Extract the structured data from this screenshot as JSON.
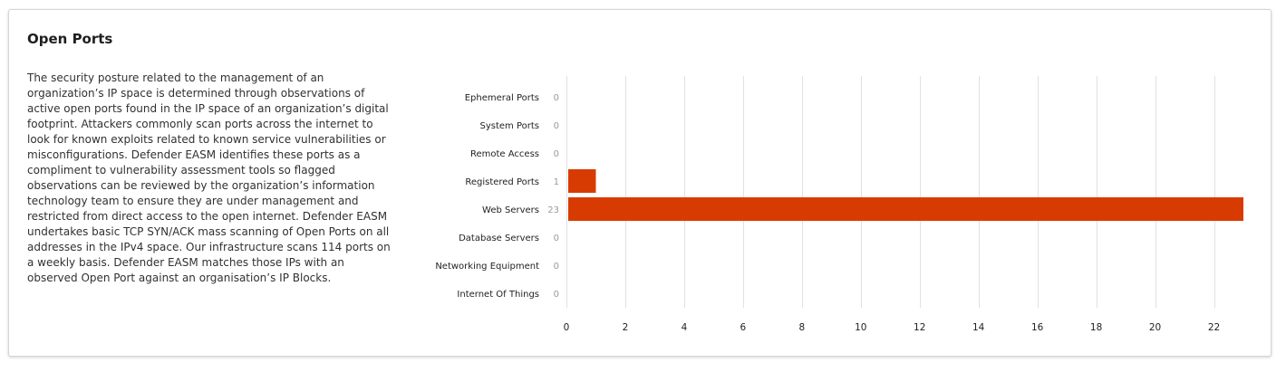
{
  "card": {
    "title": "Open Ports",
    "description": "The security posture related to the management of an organization’s IP space is determined through observations of active open ports found in the IP space of an organization’s digital footprint. Attackers commonly scan ports across the internet to look for known exploits related to known service vulnerabilities or misconfigurations. Defender EASM identifies these ports as a compliment to vulnerability assessment tools so flagged observations can be reviewed by the organization’s information technology team to ensure they are under management and restricted from direct access to the open internet. Defender EASM undertakes basic TCP SYN/ACK mass scanning of Open Ports on all addresses in the IPv4 space. Our infrastructure scans 114 ports on a weekly basis. Defender EASM matches those IPs with an observed Open Port against an organisation’s IP Blocks."
  },
  "chart_data": {
    "type": "bar",
    "orientation": "horizontal",
    "categories": [
      "Ephemeral Ports",
      "System Ports",
      "Remote Access",
      "Registered Ports",
      "Web Servers",
      "Database Servers",
      "Networking Equipment",
      "Internet Of Things"
    ],
    "values": [
      0,
      0,
      0,
      1,
      23,
      0,
      0,
      0
    ],
    "xlim": [
      0,
      23
    ],
    "xticks": [
      0,
      2,
      4,
      6,
      8,
      10,
      12,
      14,
      16,
      18,
      20,
      22
    ],
    "grid": true,
    "bar_color": "#d83b01"
  }
}
